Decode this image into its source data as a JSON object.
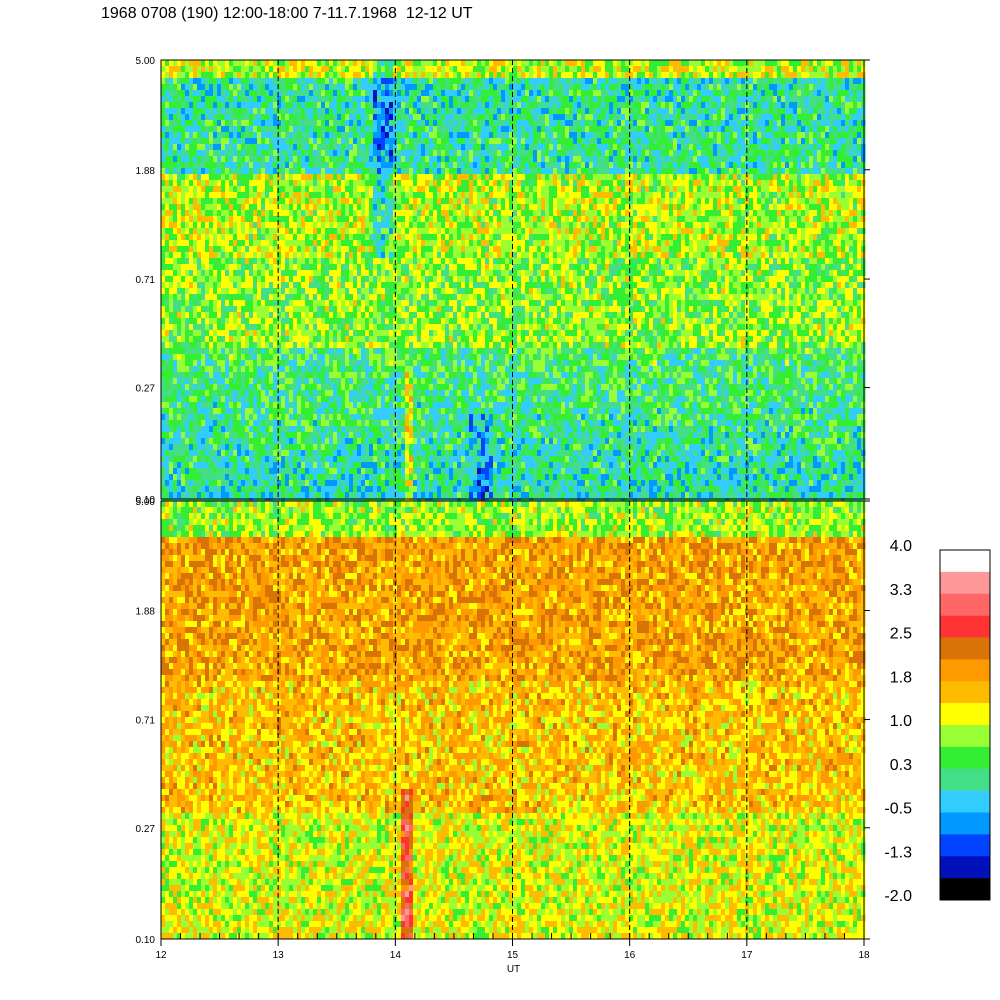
{
  "title": "1968 0708 (190) 12:00-18:00 7-11.7.1968  12-12 UT",
  "chart_data": {
    "type": "heatmap",
    "xlabel": "UT",
    "x_ticks": [
      "12",
      "13",
      "14",
      "15",
      "16",
      "17",
      "18"
    ],
    "xlim": [
      12,
      18
    ],
    "dashed_gridlines_x": [
      13,
      14,
      15,
      16,
      17
    ],
    "panels": [
      {
        "name": "upper",
        "y_ticks": [
          "5.00",
          "1.88",
          "0.71",
          "0.27",
          "0.10"
        ],
        "ylim": [
          0.1,
          5.0
        ],
        "y_scale": "log",
        "dominant_levels": [
          "0.3 to 1.0 (green/yellow)",
          "-0.5 to 0.3 (cyan/teal) near top and bottom"
        ]
      },
      {
        "name": "lower",
        "y_ticks": [
          "5.00",
          "1.88",
          "0.71",
          "0.27",
          "0.10"
        ],
        "ylim": [
          0.1,
          5.0
        ],
        "y_scale": "log",
        "dominant_levels": [
          "1.0 to 2.5 (yellow/orange)",
          "2.5 to 3.3 (red) near x=14.1"
        ]
      }
    ],
    "colorbar": {
      "labels": [
        "4.0",
        "3.3",
        "2.5",
        "1.8",
        "1.0",
        "0.3",
        "-0.5",
        "-1.3",
        "-2.0"
      ],
      "range": [
        -2.0,
        4.0
      ],
      "colors": [
        "#ffffff",
        "#ff9999",
        "#ff6666",
        "#ff3333",
        "#d97306",
        "#ff9900",
        "#ffbb00",
        "#ffff00",
        "#99ff33",
        "#33ee33",
        "#44dd88",
        "#33ccff",
        "#0099ff",
        "#0044ff",
        "#0011bb",
        "#000000"
      ]
    }
  }
}
